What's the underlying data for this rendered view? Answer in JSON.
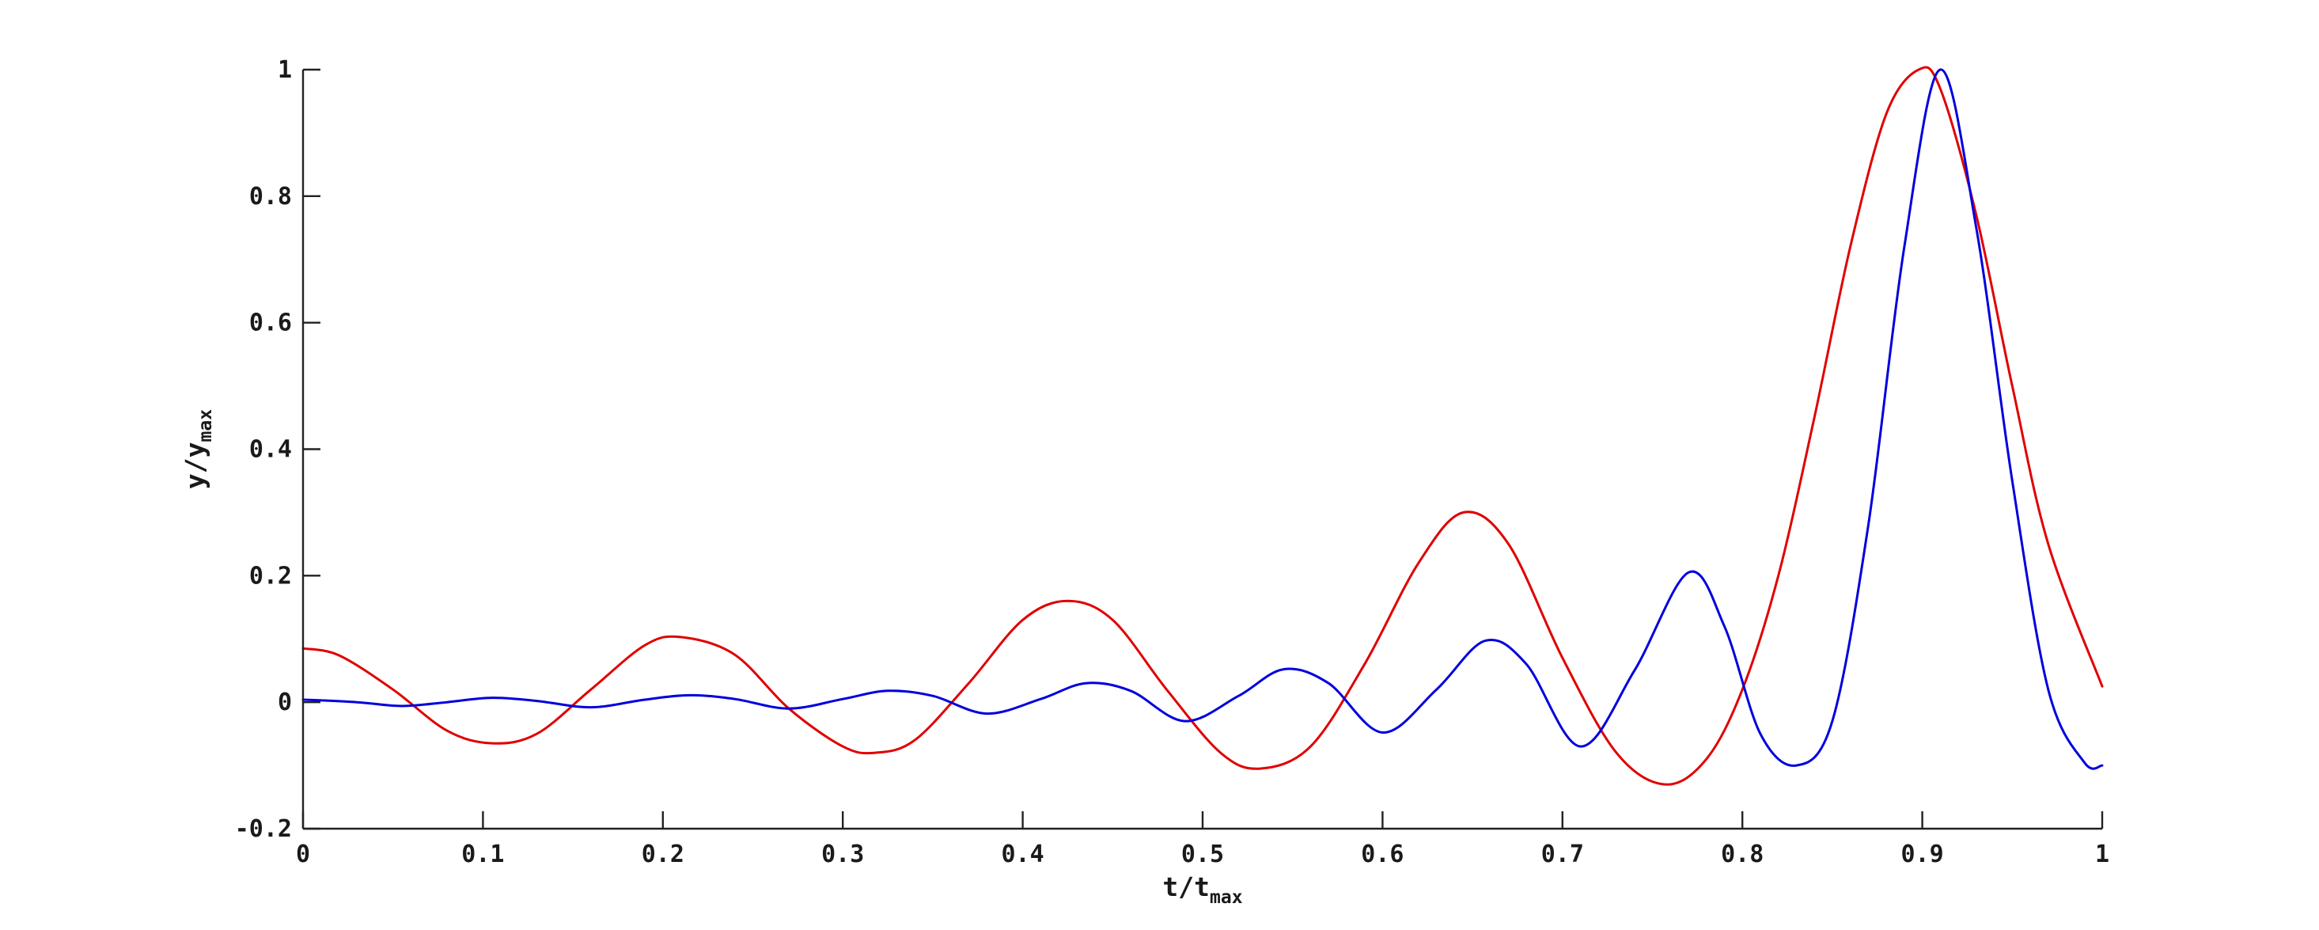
{
  "chart_data": {
    "type": "line",
    "title": "",
    "xlabel": {
      "base": "t/t",
      "subscript": "max"
    },
    "ylabel": {
      "base": "y/y",
      "subscript": "max"
    },
    "xlim": [
      0,
      1
    ],
    "ylim": [
      -0.2,
      1
    ],
    "xticks": [
      0,
      0.1,
      0.2,
      0.3,
      0.4,
      0.5,
      0.6,
      0.7,
      0.8,
      0.9,
      1
    ],
    "xtick_labels": [
      "0",
      "0.1",
      "0.2",
      "0.3",
      "0.4",
      "0.5",
      "0.6",
      "0.7",
      "0.8",
      "0.9",
      "1"
    ],
    "yticks": [
      -0.2,
      0,
      0.2,
      0.4,
      0.6,
      0.8,
      1
    ],
    "ytick_labels": [
      "-0.2",
      "0",
      "0.2",
      "0.4",
      "0.6",
      "0.8",
      "1"
    ],
    "grid": false,
    "legend": "none",
    "series": [
      {
        "color": "#e00000",
        "x": [
          0,
          0.02,
          0.05,
          0.08,
          0.105,
          0.13,
          0.16,
          0.19,
          0.21,
          0.24,
          0.27,
          0.3,
          0.318,
          0.34,
          0.37,
          0.4,
          0.425,
          0.45,
          0.48,
          0.51,
          0.532,
          0.56,
          0.59,
          0.62,
          0.645,
          0.67,
          0.7,
          0.73,
          0.757,
          0.78,
          0.8,
          0.82,
          0.84,
          0.86,
          0.88,
          0.898,
          0.91,
          0.93,
          0.95,
          0.97,
          1
        ],
        "y": [
          0.085,
          0.074,
          0.02,
          -0.045,
          -0.065,
          -0.05,
          0.02,
          0.09,
          0.103,
          0.075,
          -0.01,
          -0.07,
          -0.08,
          -0.06,
          0.03,
          0.13,
          0.16,
          0.13,
          0.02,
          -0.08,
          -0.105,
          -0.07,
          0.06,
          0.22,
          0.3,
          0.25,
          0.07,
          -0.08,
          -0.13,
          -0.09,
          0.02,
          0.2,
          0.45,
          0.72,
          0.93,
          1.0,
          0.97,
          0.77,
          0.5,
          0.25,
          0.025
        ]
      },
      {
        "color": "#0000dd",
        "x": [
          0,
          0.03,
          0.055,
          0.08,
          0.105,
          0.13,
          0.16,
          0.19,
          0.215,
          0.24,
          0.27,
          0.3,
          0.325,
          0.35,
          0.38,
          0.41,
          0.435,
          0.46,
          0.49,
          0.52,
          0.545,
          0.57,
          0.6,
          0.63,
          0.657,
          0.68,
          0.71,
          0.74,
          0.77,
          0.79,
          0.81,
          0.83,
          0.85,
          0.87,
          0.89,
          0.91,
          0.93,
          0.95,
          0.97,
          0.99,
          1
        ],
        "y": [
          0.004,
          0.0,
          -0.006,
          0.0,
          0.007,
          0.002,
          -0.008,
          0.004,
          0.011,
          0.005,
          -0.01,
          0.005,
          0.018,
          0.01,
          -0.018,
          0.005,
          0.03,
          0.018,
          -0.03,
          0.01,
          0.052,
          0.03,
          -0.048,
          0.02,
          0.097,
          0.06,
          -0.07,
          0.05,
          0.205,
          0.12,
          -0.05,
          -0.1,
          -0.03,
          0.28,
          0.72,
          1.0,
          0.75,
          0.35,
          0.02,
          -0.095,
          -0.1
        ]
      }
    ]
  }
}
